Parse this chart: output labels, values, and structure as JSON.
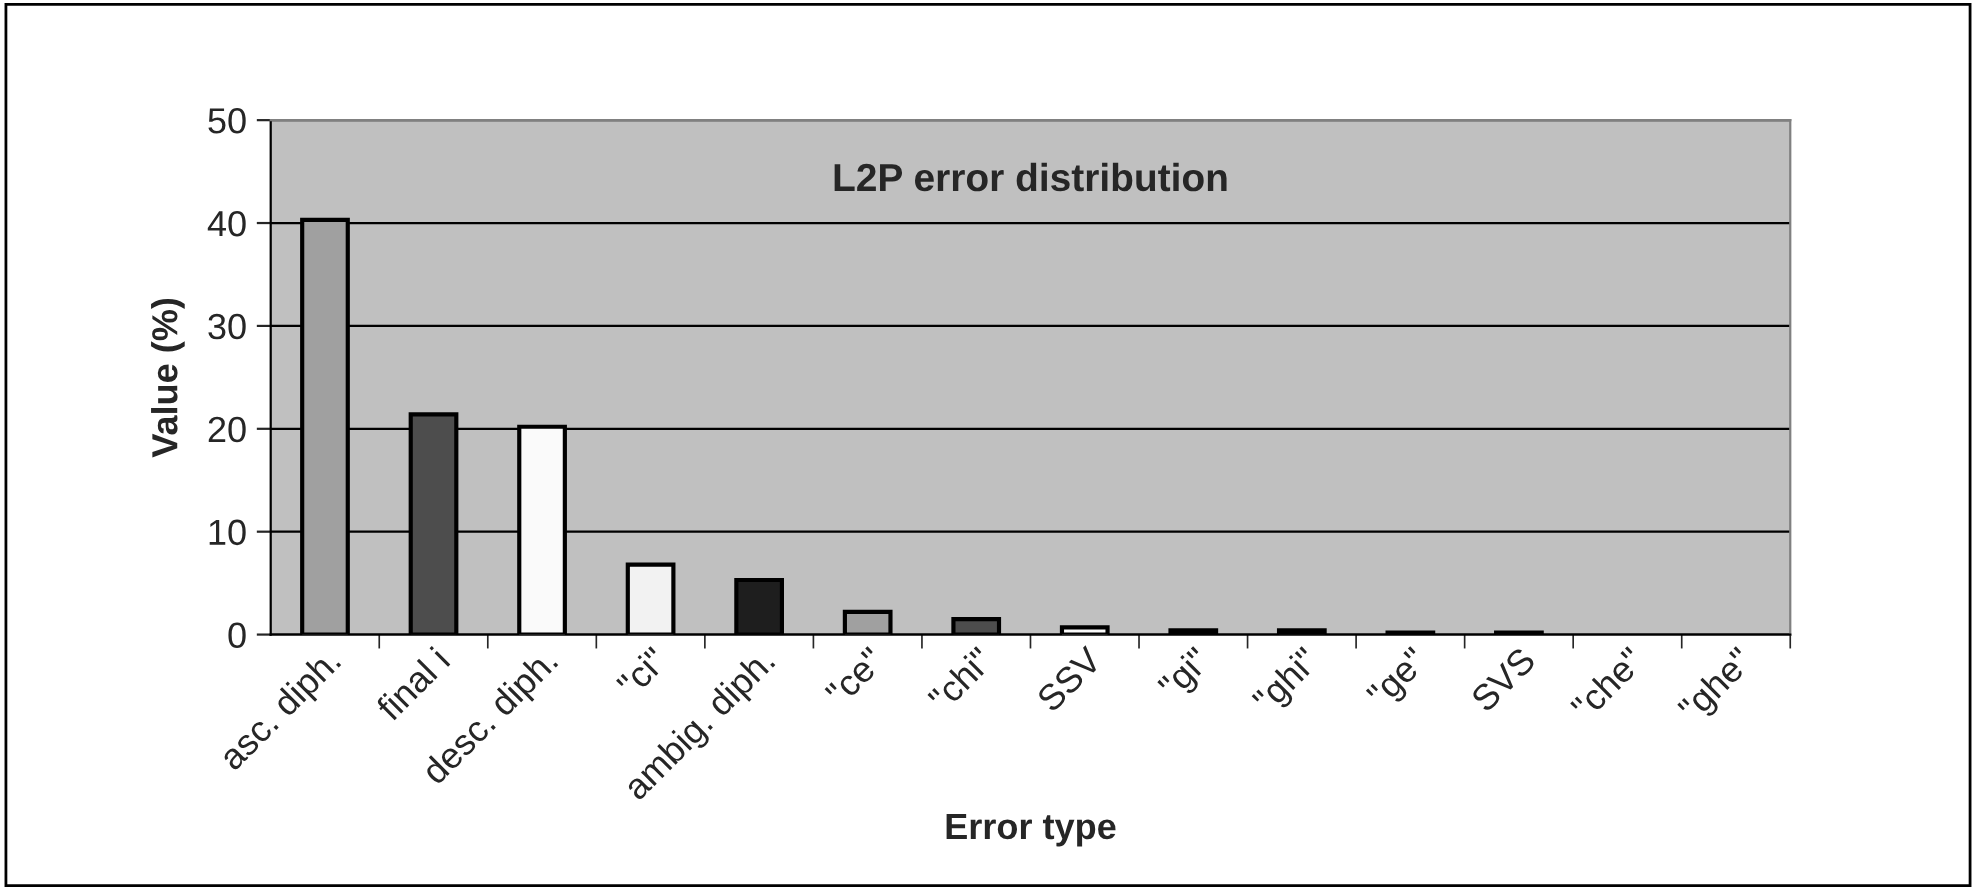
{
  "chart_data": {
    "type": "bar",
    "title": "L2P error distribution",
    "xlabel": "Error type",
    "ylabel": "Value (%)",
    "categories": [
      "asc. diph.",
      "final i",
      "desc. diph.",
      "\"ci\"",
      "ambig. diph.",
      "\"ce\"",
      "\"chi\"",
      "SSV",
      "\"gi\"",
      "\"ghi\"",
      "\"ge\"",
      "SVS",
      "\"che\"",
      "\"ghe\""
    ],
    "values": [
      40.3,
      21.4,
      20.2,
      6.8,
      5.3,
      2.2,
      1.5,
      0.7,
      0.4,
      0.4,
      0.2,
      0.2,
      0,
      0
    ],
    "colors": [
      "#a0a0a0",
      "#4d4d4d",
      "#fafafa",
      "#f2f2f2",
      "#1e1e1e",
      "#a0a0a0",
      "#4d4d4d",
      "#fafafa",
      "#1e1e1e",
      "#4d4d4d",
      "#1e1e1e",
      "#1e1e1e",
      "#a0a0a0",
      "#4d4d4d"
    ],
    "ylim": [
      0,
      50
    ],
    "yticks": [
      0,
      10,
      20,
      30,
      40,
      50
    ],
    "grid": "y",
    "legend": false
  }
}
